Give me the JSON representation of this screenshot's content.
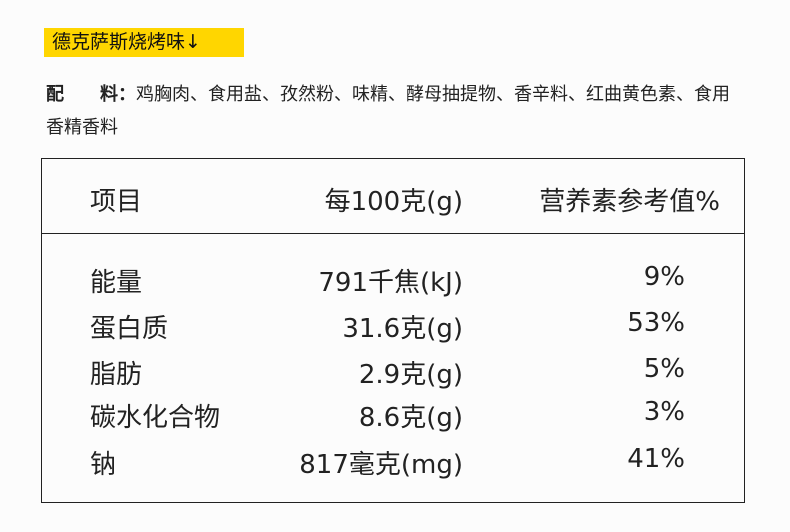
{
  "flavor": "德克萨斯烧烤味↓",
  "ingredients": {
    "label": "配　　料：",
    "text": "鸡胸肉、食用盐、孜然粉、味精、酵母抽提物、香辛料、红曲黄色素、食用香精香料"
  },
  "colors": {
    "highlight": "#ffd600"
  },
  "table": {
    "headers": [
      "项目",
      "每100克(g)",
      "营养素参考值%"
    ],
    "rows": [
      [
        "能量",
        "791千焦(kJ)",
        "9%"
      ],
      [
        "蛋白质",
        "31.6克(g)",
        "53%"
      ],
      [
        "脂肪",
        "2.9克(g)",
        "5%"
      ],
      [
        "碳水化合物",
        "8.6克(g)",
        "3%"
      ],
      [
        "钠",
        "817毫克(mg)",
        "41%"
      ]
    ]
  }
}
